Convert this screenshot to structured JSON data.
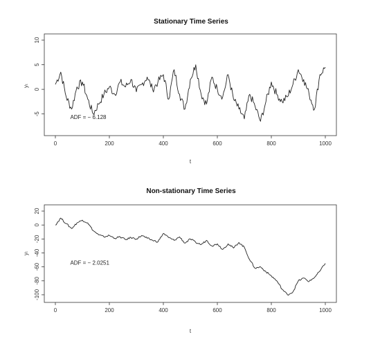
{
  "chart_data": [
    {
      "type": "line",
      "title": "Stationary Time Series",
      "xlabel": "t",
      "ylabel": "yₜ",
      "xlim": [
        0,
        1000
      ],
      "ylim": [
        -8,
        10
      ],
      "xticks": [
        0,
        200,
        400,
        600,
        800,
        1000
      ],
      "xtick_labels": [
        "0",
        "200",
        "400",
        "600",
        "800",
        "1000"
      ],
      "yticks": [
        -5,
        0,
        5,
        10
      ],
      "ytick_labels": [
        "-5",
        "0",
        "5",
        "10"
      ],
      "annotation": "ADF = − 6.128",
      "annotation_at": [
        55,
        -6
      ],
      "series": [
        {
          "name": "y",
          "x": [
            0,
            20,
            40,
            60,
            80,
            100,
            120,
            140,
            160,
            180,
            200,
            220,
            240,
            260,
            280,
            300,
            320,
            340,
            360,
            380,
            400,
            420,
            440,
            460,
            480,
            500,
            520,
            540,
            560,
            580,
            600,
            620,
            640,
            660,
            680,
            700,
            720,
            740,
            760,
            780,
            800,
            820,
            840,
            860,
            880,
            900,
            920,
            940,
            960,
            980,
            1000
          ],
          "values": [
            1,
            3.5,
            -1.5,
            -4,
            0.5,
            1.5,
            -2,
            -5,
            -3,
            -1,
            0.5,
            -1,
            1.5,
            0.5,
            2,
            -0.5,
            1,
            2.5,
            0,
            1.5,
            3,
            -2,
            4,
            -1,
            -4,
            2,
            5,
            -1,
            -3,
            2.5,
            0,
            -1.5,
            3,
            -2,
            -4,
            -6,
            -1,
            -3.5,
            -6.5,
            -2.5,
            1.5,
            -1,
            -2.5,
            -1.5,
            1,
            4,
            2,
            -1,
            -4,
            3,
            4.5
          ]
        }
      ]
    },
    {
      "type": "line",
      "title": "Non-stationary Time Series",
      "xlabel": "t",
      "ylabel": "yₜ",
      "xlim": [
        0,
        1000
      ],
      "ylim": [
        -105,
        22
      ],
      "xticks": [
        0,
        200,
        400,
        600,
        800,
        1000
      ],
      "xtick_labels": [
        "0",
        "200",
        "400",
        "600",
        "800",
        "1000"
      ],
      "yticks": [
        -100,
        -80,
        -60,
        -40,
        -20,
        0,
        20
      ],
      "ytick_labels": [
        "-100",
        "-80",
        "-60",
        "-40",
        "-20",
        "0",
        "20"
      ],
      "annotation": "ADF = − 2.0251",
      "annotation_at": [
        55,
        -57
      ],
      "series": [
        {
          "name": "y",
          "x": [
            0,
            20,
            40,
            60,
            80,
            100,
            120,
            140,
            160,
            180,
            200,
            220,
            240,
            260,
            280,
            300,
            320,
            340,
            360,
            380,
            400,
            420,
            440,
            460,
            480,
            500,
            520,
            540,
            560,
            580,
            600,
            620,
            640,
            660,
            680,
            700,
            720,
            740,
            760,
            780,
            800,
            820,
            840,
            860,
            880,
            900,
            920,
            940,
            960,
            980,
            1000
          ],
          "values": [
            0,
            10,
            2,
            -5,
            3,
            7,
            3,
            -8,
            -14,
            -17,
            -15,
            -19,
            -17,
            -21,
            -18,
            -20,
            -15,
            -19,
            -22,
            -24,
            -12,
            -18,
            -22,
            -17,
            -26,
            -20,
            -25,
            -28,
            -22,
            -30,
            -27,
            -35,
            -27,
            -33,
            -25,
            -32,
            -50,
            -62,
            -60,
            -67,
            -73,
            -80,
            -92,
            -100,
            -96,
            -80,
            -76,
            -81,
            -75,
            -66,
            -55
          ]
        }
      ]
    }
  ]
}
